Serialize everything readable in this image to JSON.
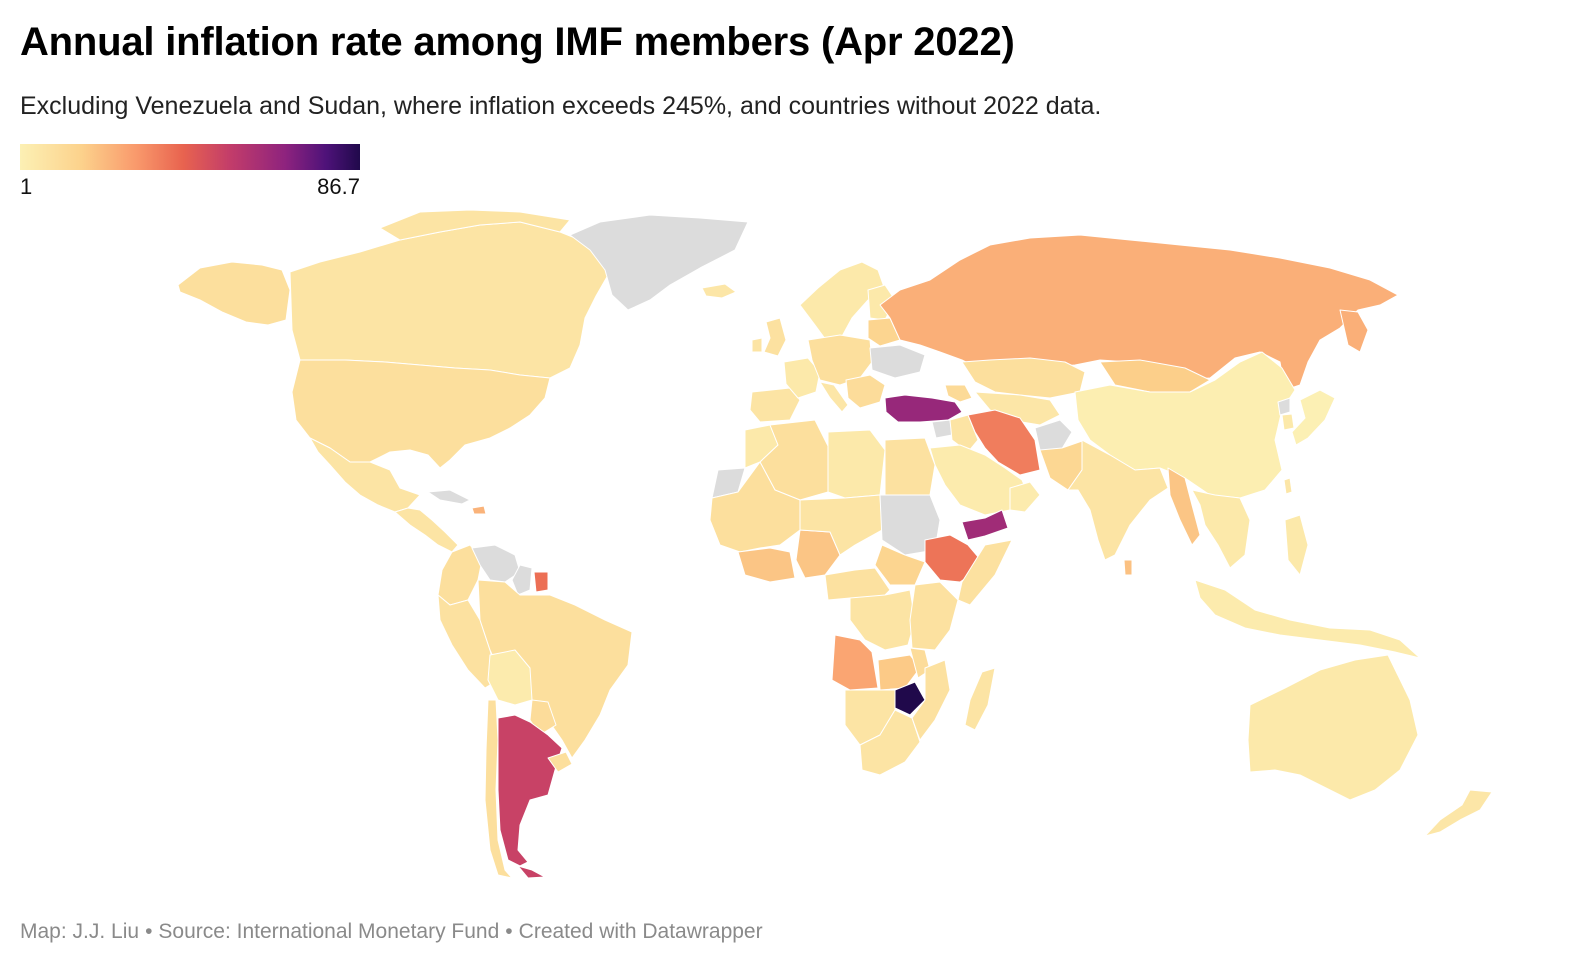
{
  "header": {
    "title": "Annual inflation rate among IMF members (Apr 2022)",
    "subtitle": "Excluding Venezuela and Sudan, where inflation exceeds 245%, and countries without 2022 data."
  },
  "legend": {
    "min_label": "1",
    "max_label": "86.7",
    "scale_min": 1,
    "scale_max": 86.7,
    "color_stops": [
      "#fcf0b4",
      "#fcd28c",
      "#f99a6c",
      "#e8634f",
      "#c23c6a",
      "#8e237e",
      "#4e1279",
      "#20094b"
    ],
    "no_data_color": "#dcdcdc"
  },
  "footer": {
    "map_credit": "Map: J.J. Liu",
    "source": "Source: International Monetary Fund",
    "created_with": "Created with Datawrapper",
    "separator": "•"
  },
  "chart_data": {
    "type": "choropleth",
    "value_label": "Annual inflation rate (%)",
    "approximate_values_by_color": {
      "Zimbabwe": 86.7,
      "Turkey": 60,
      "Yemen": 58,
      "Argentina": 48,
      "Suriname": 35,
      "Iran": 32,
      "Ethiopia": 34,
      "Russia": 21,
      "Angola": 23,
      "Nigeria": 16,
      "Myanmar": 16,
      "Kazakhstan": 8,
      "Brazil": 8,
      "Mexico": 6,
      "United States": 8,
      "Canada": 6,
      "China": 2,
      "Japan": 1,
      "Saudi Arabia": 3,
      "India": 6,
      "Australia": 4,
      "Indonesia": 3,
      "South Africa": 6,
      "Egypt": 7,
      "DR Congo": 6,
      "Algeria": 8,
      "Bolivia": 3
    },
    "no_data": [
      "Greenland",
      "Venezuela",
      "Sudan",
      "Ukraine",
      "Afghanistan",
      "Syria",
      "Western Sahara",
      "Guyana",
      "Cuba",
      "North Korea"
    ]
  }
}
